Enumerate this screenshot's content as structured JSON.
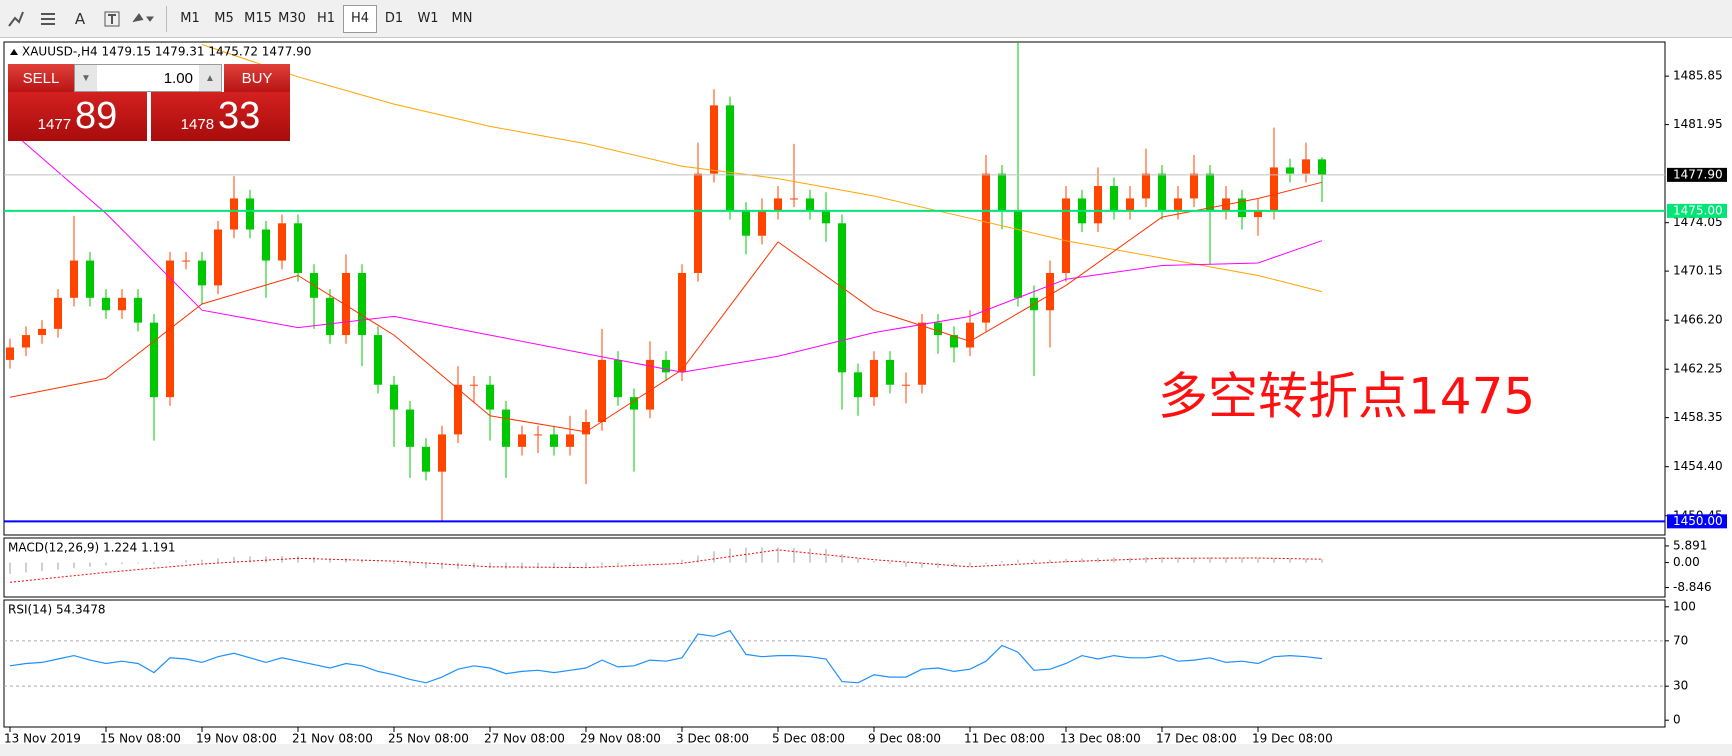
{
  "toolbar": {
    "text_tool": "A",
    "timeframes": [
      "M1",
      "M5",
      "M15",
      "M30",
      "H1",
      "H4",
      "D1",
      "W1",
      "MN"
    ],
    "active": "H4"
  },
  "trade_panel": {
    "sell_label": "SELL",
    "buy_label": "BUY",
    "volume": "1.00",
    "bid_big": "1477",
    "bid_small": "89",
    "ask_big": "1478",
    "ask_small": "33"
  },
  "chart_data": [
    {
      "type": "candlestick",
      "title": "XAUUSD-,H4  1479.15 1479.31 1475.72 1477.90",
      "annotation": "多空转折点1475",
      "categories": [
        "13 Nov 2019",
        null,
        null,
        null,
        null,
        null,
        "15 Nov 08:00",
        null,
        null,
        null,
        null,
        null,
        "19 Nov 08:00",
        null,
        null,
        null,
        null,
        null,
        "21 Nov 08:00",
        null,
        null,
        null,
        null,
        null,
        "25 Nov 08:00",
        null,
        null,
        null,
        null,
        null,
        "27 Nov 08:00",
        null,
        null,
        null,
        null,
        null,
        "29 Nov 08:00",
        null,
        null,
        null,
        null,
        null,
        "3 Dec 08:00",
        null,
        null,
        null,
        null,
        null,
        "5 Dec 08:00",
        null,
        null,
        null,
        null,
        null,
        "9 Dec 08:00",
        null,
        null,
        null,
        null,
        null,
        "11 Dec 08:00",
        null,
        null,
        null,
        null,
        null,
        "13 Dec 08:00",
        null,
        null,
        null,
        null,
        null,
        "17 Dec 08:00",
        null,
        null,
        null,
        null,
        null,
        "19 Dec 08:00",
        null,
        null,
        null,
        null
      ],
      "open": [
        1463,
        1464,
        1465,
        1465.5,
        1468,
        1471,
        1468,
        1467,
        1468,
        1466,
        1460,
        1471,
        1471,
        1469,
        1473.5,
        1476,
        1473.5,
        1471,
        1474,
        1470,
        1468,
        1465,
        1470,
        1465,
        1461,
        1459,
        1456,
        1454,
        1457,
        1461,
        1461,
        1459,
        1456,
        1457,
        1457,
        1456,
        1457,
        1458,
        1463,
        1460,
        1459,
        1463,
        1462,
        1470,
        1478,
        1483.5,
        1475,
        1473,
        1475,
        1476,
        1476,
        1475,
        1474,
        1462,
        1460,
        1463,
        1461,
        1461,
        1466,
        1465,
        1464,
        1466,
        1478,
        1475,
        1468,
        1467,
        1470,
        1476,
        1474,
        1477,
        1475,
        1476,
        1478,
        1475,
        1476,
        1478,
        1475,
        1476,
        1474.5,
        1475,
        1478.5,
        1478,
        1479.15
      ],
      "high": [
        1464.7,
        1465.7,
        1466.2,
        1468.7,
        1474.6,
        1471.7,
        1468.7,
        1468.7,
        1468.7,
        1466.7,
        1471.7,
        1471.7,
        1471.7,
        1474.2,
        1477.8,
        1476.7,
        1474.2,
        1474.7,
        1474.7,
        1470.7,
        1468.7,
        1471.5,
        1470.7,
        1465.7,
        1461.7,
        1459.7,
        1456.7,
        1457.7,
        1462.5,
        1461.7,
        1461.7,
        1459.7,
        1457.7,
        1457.7,
        1457.7,
        1458.5,
        1459,
        1465.5,
        1463.7,
        1460.7,
        1464.5,
        1463.7,
        1470.7,
        1480.5,
        1484.8,
        1484.2,
        1475.7,
        1476,
        1477,
        1480.4,
        1476.7,
        1476.5,
        1474.7,
        1462.7,
        1463.7,
        1463.7,
        1462,
        1466.7,
        1466.7,
        1465.7,
        1467,
        1479.5,
        1478.7,
        1488.6,
        1469,
        1471,
        1477,
        1476.7,
        1478.5,
        1477.7,
        1477,
        1480,
        1478.7,
        1477,
        1479.5,
        1478.7,
        1477,
        1476.7,
        1476,
        1481.7,
        1479.2,
        1480.5,
        1479.31
      ],
      "low": [
        1462.3,
        1463.3,
        1464.3,
        1464.8,
        1467.3,
        1467.3,
        1466.3,
        1466.3,
        1465.3,
        1456.5,
        1459.3,
        1470.3,
        1467.5,
        1468.3,
        1472.8,
        1472.8,
        1468,
        1470.3,
        1469.3,
        1465.5,
        1464.3,
        1464.3,
        1462.5,
        1460.3,
        1456,
        1453.5,
        1453.3,
        1450,
        1456.3,
        1459.5,
        1456.5,
        1453.5,
        1455.3,
        1455.5,
        1455.3,
        1455.3,
        1453,
        1457.3,
        1459.3,
        1454,
        1458.3,
        1461.3,
        1461.3,
        1469.3,
        1477.3,
        1474.3,
        1471.5,
        1472.3,
        1474.3,
        1475.3,
        1474.3,
        1472.5,
        1459,
        1458.5,
        1459.3,
        1460.3,
        1459.5,
        1460.3,
        1463.5,
        1462.8,
        1463.3,
        1465.3,
        1473.5,
        1467.3,
        1461.7,
        1464,
        1469.3,
        1473.3,
        1473.3,
        1474.3,
        1474.3,
        1475.3,
        1474.3,
        1474.3,
        1475.3,
        1470.7,
        1474.3,
        1473.5,
        1473,
        1474.3,
        1477.3,
        1477.3,
        1475.72
      ],
      "close": [
        1464,
        1465,
        1465.5,
        1468,
        1471,
        1468,
        1467,
        1468,
        1466,
        1460,
        1471,
        1471,
        1469,
        1473.5,
        1476,
        1473.5,
        1471,
        1474,
        1470,
        1468,
        1465,
        1470,
        1465,
        1461,
        1459,
        1456,
        1454,
        1457,
        1461,
        1461,
        1459,
        1456,
        1457,
        1457,
        1456,
        1457,
        1458,
        1463,
        1460,
        1459,
        1463,
        1462,
        1470,
        1478,
        1483.5,
        1475,
        1473,
        1475,
        1476,
        1476,
        1475,
        1474,
        1462,
        1460,
        1463,
        1461,
        1461,
        1466,
        1465,
        1464,
        1466,
        1478,
        1475,
        1468,
        1467,
        1470,
        1476,
        1474,
        1477,
        1475,
        1476,
        1478,
        1475,
        1476,
        1478,
        1475,
        1476,
        1474.5,
        1475,
        1478.5,
        1478,
        1479.15,
        1477.9
      ],
      "up_color": "#ff4500",
      "down_color": "#00c800",
      "overlays": [
        {
          "color": "#ffa500",
          "x": [
            0,
            6,
            12,
            18,
            24,
            30,
            36,
            42,
            48,
            54,
            60,
            66,
            72,
            78,
            82
          ],
          "values": [
            null,
            null,
            1488.4,
            1485.8,
            1483.6,
            1481.8,
            1480.4,
            1478.6,
            1477.6,
            1476.2,
            1474.4,
            1472.6,
            1471.2,
            1469.8,
            1468.5
          ]
        },
        {
          "color": "#ff00ff",
          "x": [
            0,
            6,
            12,
            18,
            24,
            30,
            36,
            42,
            48,
            54,
            60,
            66,
            72,
            78,
            82
          ],
          "values": [
            1481.5,
            1474.8,
            1467,
            1465.6,
            1466.5,
            1465,
            1463.5,
            1462,
            1463.3,
            1465.2,
            1466.5,
            1469.5,
            1470.6,
            1470.8,
            1472.6
          ]
        },
        {
          "color": "#ff3300",
          "x": [
            0,
            6,
            12,
            18,
            24,
            30,
            36,
            42,
            48,
            54,
            60,
            66,
            72,
            78,
            82
          ],
          "values": [
            1460,
            1461.5,
            1467.5,
            1469.8,
            1465,
            1458.5,
            1457.2,
            1462.2,
            1472.5,
            1467,
            1464.5,
            1469,
            1474.5,
            1476,
            1477.3
          ]
        }
      ],
      "hlines": [
        {
          "value": 1477.9,
          "label": "1477.90",
          "color": "#c0c0c0",
          "box": "#000000",
          "text_color": "#ffffff"
        },
        {
          "value": 1475,
          "label": "1475.00",
          "color": "#00e676",
          "box": "#00e676",
          "text_color": "#ffffff"
        },
        {
          "value": 1450,
          "label": "1450.00",
          "color": "#0000ff",
          "box": "#0000ff",
          "text_color": "#ffffff"
        }
      ],
      "ylim": [
        1448.9,
        1488.6
      ],
      "yticks": [
        1485.85,
        1481.95,
        1474.05,
        1470.15,
        {
          "value": 1466.2,
          "label": "1466.20"
        },
        1462.25,
        1458.35,
        {
          "value": 1454.4,
          "label": "1454.40"
        },
        1450.45
      ]
    },
    {
      "type": "macd",
      "title": "MACD(12,26,9) 1.224 1.191",
      "histogram": [
        -4,
        -3.5,
        -3,
        -2.5,
        -2,
        -1.5,
        -1,
        -0.5,
        -0.3,
        -0.5,
        0.3,
        0.8,
        1,
        1.5,
        2,
        2.2,
        2.2,
        2.3,
        2.2,
        2,
        1.5,
        1.5,
        1,
        0.3,
        -0.5,
        -1.2,
        -2,
        -2.2,
        -2.2,
        -2,
        -2,
        -2.2,
        -2.2,
        -2,
        -2,
        -1.8,
        -1.6,
        -1,
        -0.8,
        -0.6,
        -0.2,
        0,
        1,
        2.5,
        4,
        5,
        5.3,
        5.4,
        5.4,
        5.2,
        5,
        4.8,
        3,
        1.5,
        0.5,
        -0.5,
        -1.5,
        -1.8,
        -1.8,
        -1.6,
        -1.4,
        -0.5,
        0.5,
        1,
        1,
        1,
        1.3,
        1.5,
        1.6,
        1.8,
        1.8,
        2,
        2,
        1.9,
        1.9,
        1.8,
        1.8,
        1.6,
        1.5,
        1.4,
        1.3,
        1.3,
        1.224
      ],
      "histogram_color": "#c0c0c0",
      "signal": {
        "color": "#ff0000",
        "x": [
          0,
          6,
          12,
          18,
          24,
          30,
          36,
          42,
          48,
          54,
          60,
          66,
          72,
          78,
          82
        ],
        "values": [
          -7,
          -3.5,
          -0.5,
          1.5,
          0.5,
          -1.5,
          -1.8,
          -0.3,
          4.5,
          1,
          -1.5,
          0.3,
          1.5,
          1.6,
          1.191
        ]
      },
      "ylim": [
        -12.2,
        8.7
      ],
      "yticks": [
        5.891,
        {
          "value": 0,
          "label": "0.00"
        },
        -8.846
      ]
    },
    {
      "type": "line",
      "title": "RSI(14) 54.3478",
      "color": "#1e90ff",
      "values": [
        48,
        50,
        51,
        54,
        57,
        53,
        50,
        52,
        50,
        42,
        55,
        54,
        51,
        56,
        59,
        55,
        51,
        55,
        52,
        49,
        46,
        50,
        48,
        43,
        40,
        36,
        33,
        38,
        45,
        48,
        46,
        41,
        43,
        44,
        42,
        44,
        46,
        53,
        47,
        48,
        53,
        52,
        55,
        76,
        74,
        79,
        58,
        56,
        57,
        57,
        56,
        54,
        34,
        33,
        40,
        38,
        38,
        45,
        46,
        43,
        45,
        52,
        66,
        60,
        44,
        45,
        50,
        57,
        54,
        57,
        55,
        55,
        57,
        52,
        53,
        55,
        51,
        52,
        50,
        56,
        57,
        56,
        54.3478
      ],
      "levels": [
        70,
        30
      ],
      "ylim": [
        -6,
        106
      ],
      "yticks": [
        100,
        70,
        30,
        0
      ]
    }
  ]
}
